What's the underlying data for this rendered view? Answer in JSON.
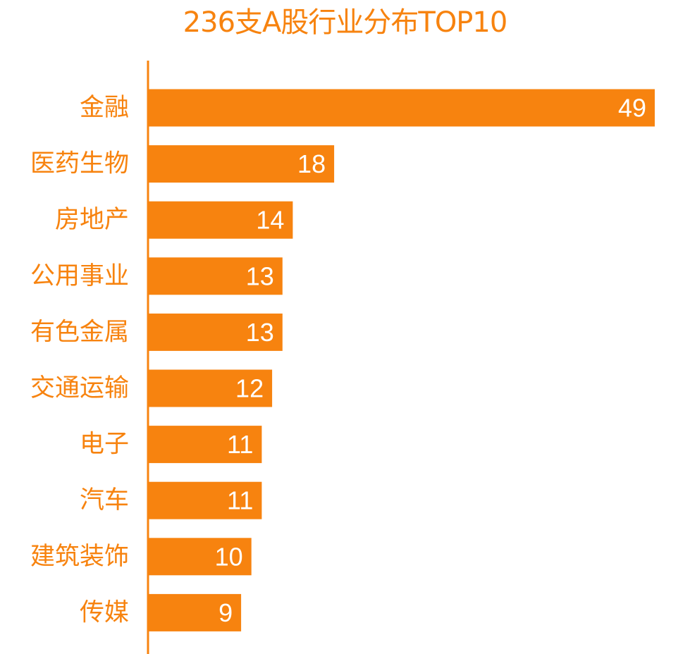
{
  "colors": {
    "accent": "#f7830f",
    "bar_label": "#ffffff",
    "background": "#ffffff"
  },
  "chart_data": {
    "type": "bar",
    "orientation": "horizontal",
    "title": "236支A股行业分布TOP10",
    "categories": [
      "金融",
      "医药生物",
      "房地产",
      "公用事业",
      "有色金属",
      "交通运输",
      "电子",
      "汽车",
      "建筑装饰",
      "传媒"
    ],
    "values": [
      49,
      18,
      14,
      13,
      13,
      12,
      11,
      11,
      10,
      9
    ],
    "xlim": [
      0,
      49
    ],
    "grid": false,
    "legend": "none",
    "data_labels": "inside-end"
  }
}
